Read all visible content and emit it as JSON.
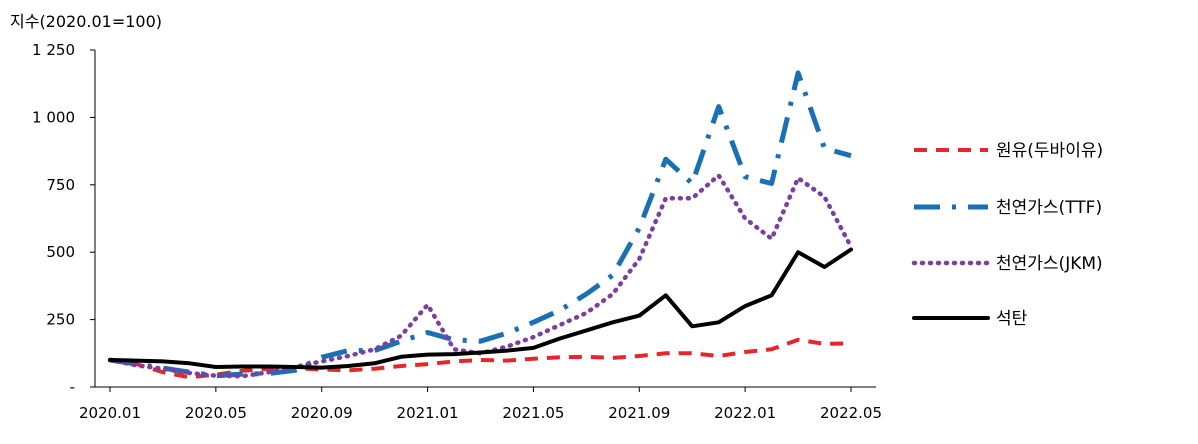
{
  "chart_data": {
    "type": "line",
    "ylabel": "지수(2020.01=100)",
    "ylim": [
      0,
      1250
    ],
    "yticks": [
      {
        "value": 0,
        "label": "-"
      },
      {
        "value": 250,
        "label": "250"
      },
      {
        "value": 500,
        "label": "500"
      },
      {
        "value": 750,
        "label": "750"
      },
      {
        "value": 1000,
        "label": "1 000"
      },
      {
        "value": 1250,
        "label": "1 250"
      }
    ],
    "x": [
      "2020.01",
      "2020.02",
      "2020.03",
      "2020.04",
      "2020.05",
      "2020.06",
      "2020.07",
      "2020.08",
      "2020.09",
      "2020.10",
      "2020.11",
      "2020.12",
      "2021.01",
      "2021.02",
      "2021.03",
      "2021.04",
      "2021.05",
      "2021.06",
      "2021.07",
      "2021.08",
      "2021.09",
      "2021.10",
      "2021.11",
      "2021.12",
      "2022.01",
      "2022.02",
      "2022.03",
      "2022.04",
      "2022.05"
    ],
    "xtick_labels": [
      "2020.01",
      "2020.05",
      "2020.09",
      "2021.01",
      "2021.05",
      "2021.09",
      "2022.01",
      "2022.05"
    ],
    "grid": false,
    "legend_position": "right",
    "series": [
      {
        "name": "원유(두바이유)",
        "color": "#e8262a",
        "style": "dashed",
        "values": [
          100,
          85,
          55,
          36,
          46,
          60,
          68,
          70,
          65,
          62,
          68,
          78,
          85,
          95,
          100,
          98,
          105,
          110,
          112,
          108,
          115,
          125,
          125,
          115,
          130,
          140,
          175,
          160,
          162
        ]
      },
      {
        "name": "천연가스(TTF)",
        "color": "#1a6fb5",
        "style": "dashdot",
        "values": [
          100,
          85,
          70,
          55,
          42,
          48,
          50,
          62,
          110,
          135,
          135,
          170,
          202,
          175,
          170,
          200,
          240,
          285,
          345,
          415,
          590,
          845,
          755,
          1040,
          780,
          755,
          1165,
          885,
          858
        ]
      },
      {
        "name": "천연가스(JKM)",
        "color": "#7a3fa0",
        "style": "dotted",
        "values": [
          100,
          80,
          68,
          52,
          42,
          40,
          55,
          75,
          95,
          115,
          140,
          190,
          305,
          140,
          125,
          150,
          185,
          230,
          275,
          345,
          475,
          700,
          700,
          785,
          625,
          550,
          775,
          705,
          520
        ]
      },
      {
        "name": "석탄",
        "color": "#000000",
        "style": "solid",
        "values": [
          100,
          98,
          95,
          88,
          74,
          76,
          76,
          74,
          72,
          78,
          88,
          112,
          120,
          122,
          128,
          135,
          145,
          180,
          210,
          240,
          265,
          340,
          225,
          240,
          300,
          340,
          500,
          445,
          510
        ]
      }
    ]
  }
}
